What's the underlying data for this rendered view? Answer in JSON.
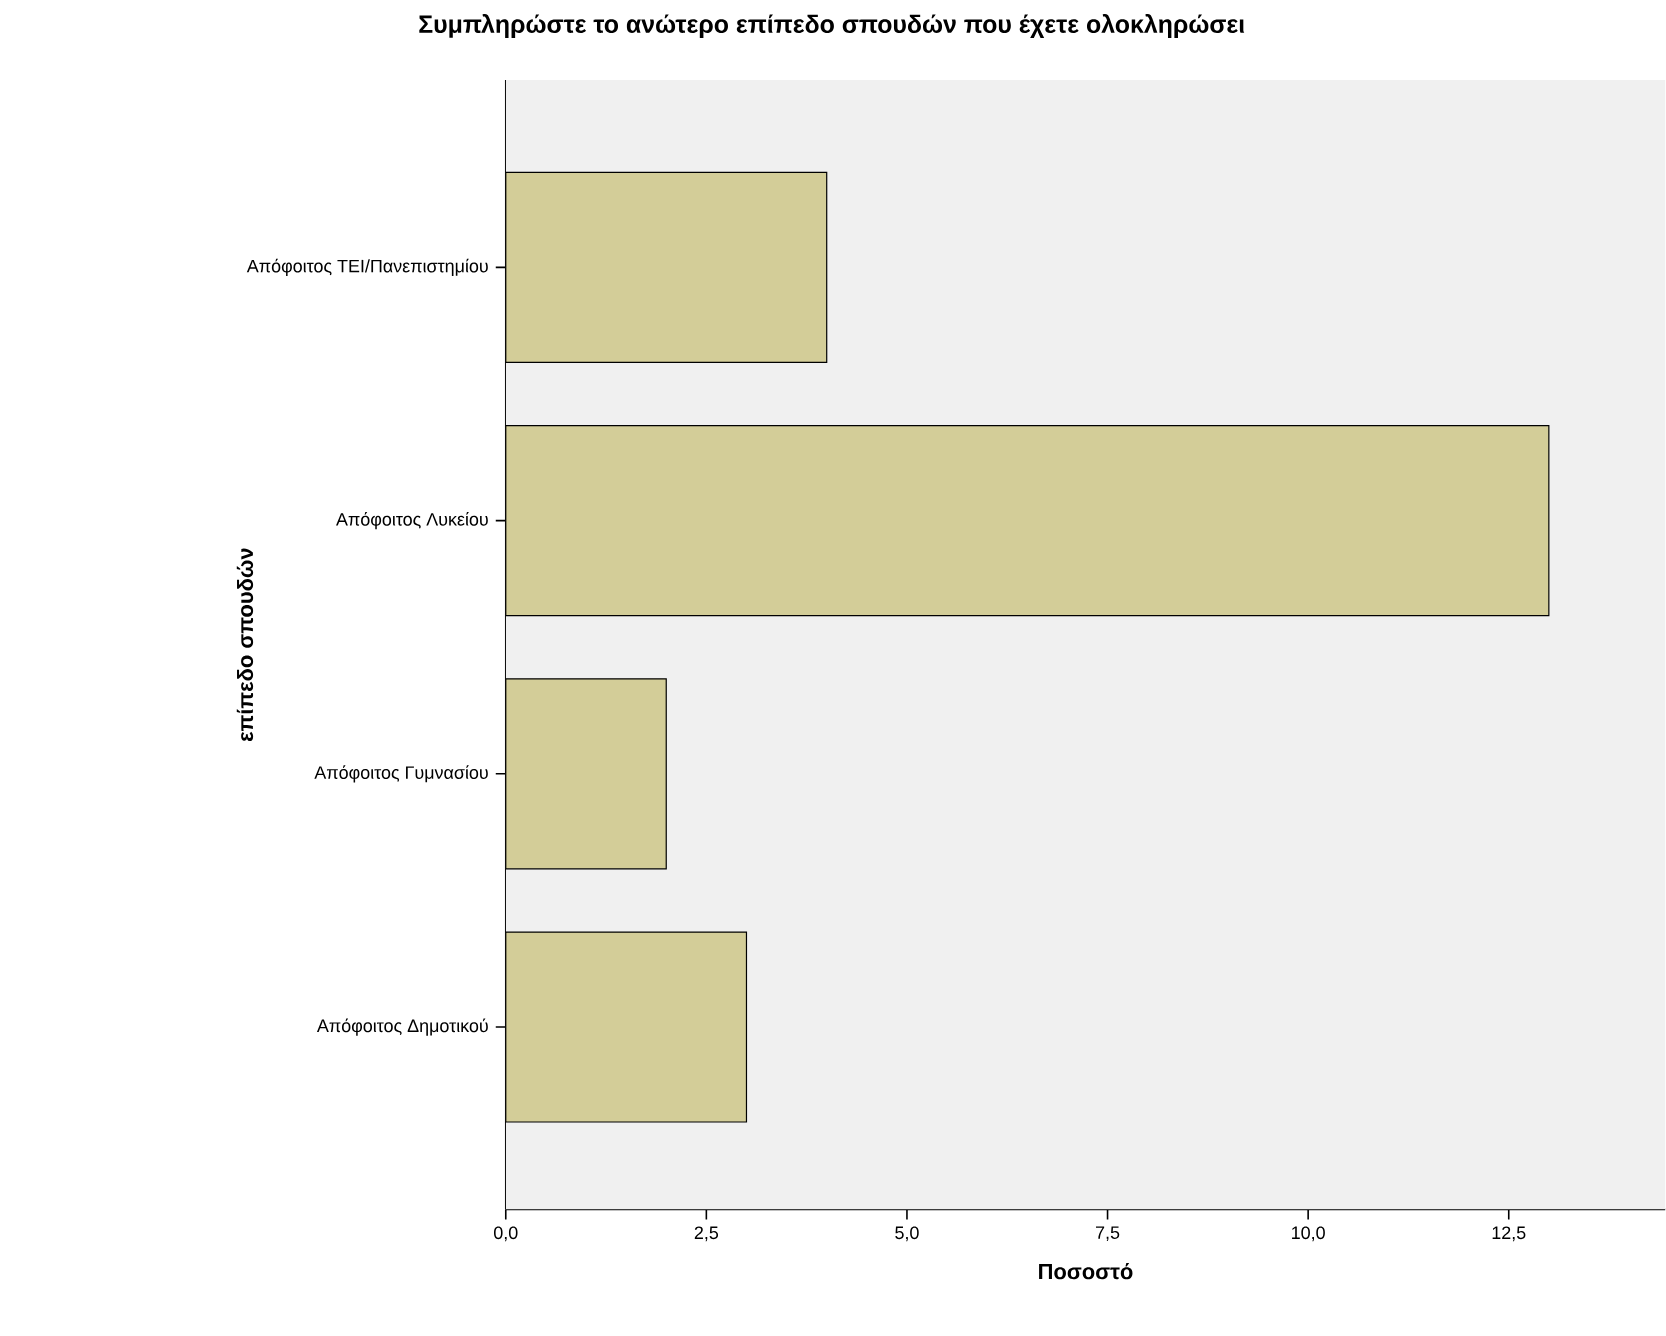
{
  "chart_data": {
    "type": "bar",
    "orientation": "horizontal",
    "title": "Συμπληρώστε το ανώτερο επίπεδο σπουδών που έχετε ολοκληρώσει",
    "xlabel": "Ποσοστό",
    "ylabel": "επίπεδο σπουδών",
    "categories": [
      "Απόφοιτος ΤΕΙ/Πανεπιστημίου",
      "Απόφοιτος Λυκείου",
      "Απόφοιτος Γυμνασίου",
      "Απόφοιτος Δημοτικού"
    ],
    "values": [
      4,
      13,
      2,
      3
    ],
    "color": "#d3cd98",
    "xlim": [
      0,
      14.45
    ],
    "xticks": [
      {
        "value": 0,
        "label": "0,0"
      },
      {
        "value": 2.5,
        "label": "2,5"
      },
      {
        "value": 5,
        "label": "5,0"
      },
      {
        "value": 7.5,
        "label": "7,5"
      },
      {
        "value": 10,
        "label": "10,0"
      },
      {
        "value": 12.5,
        "label": "12,5"
      }
    ],
    "grid": false
  }
}
